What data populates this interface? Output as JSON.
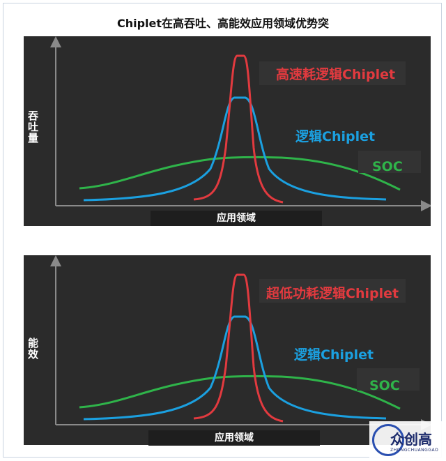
{
  "title": "Chiplet在高吞吐、高能效应用领域优势突",
  "panels": [
    {
      "ylabel": "吞吐量",
      "xlabel": "应用领域",
      "labels": {
        "red": "高速耗逻辑Chiplet",
        "blue": "逻辑Chiplet",
        "green": "SOC"
      }
    },
    {
      "ylabel": "能效",
      "xlabel": "应用领域",
      "labels": {
        "red": "超低功耗逻辑Chiplet",
        "blue": "逻辑Chiplet",
        "green": "SOC"
      }
    }
  ],
  "colors": {
    "red": "#e23a3f",
    "blue": "#1ba0e0",
    "green": "#2fb44a",
    "panel_bg": "#2b2b2b"
  },
  "watermark": {
    "brand": "众创高",
    "sub": "ZHONGCHUANGGAO"
  }
}
